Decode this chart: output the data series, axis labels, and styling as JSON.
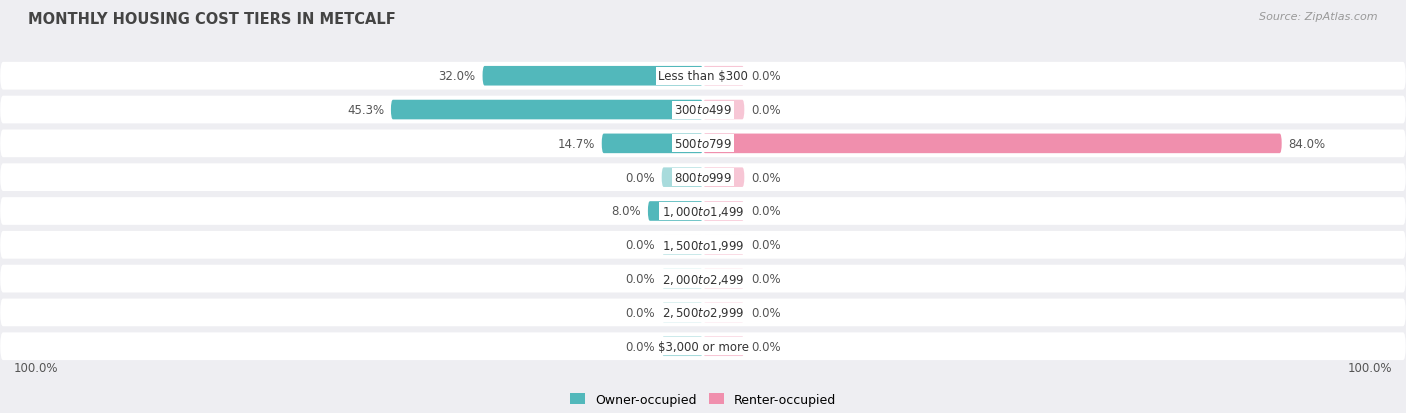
{
  "title": "MONTHLY HOUSING COST TIERS IN METCALF",
  "source": "Source: ZipAtlas.com",
  "categories": [
    "Less than $300",
    "$300 to $499",
    "$500 to $799",
    "$800 to $999",
    "$1,000 to $1,499",
    "$1,500 to $1,999",
    "$2,000 to $2,499",
    "$2,500 to $2,999",
    "$3,000 or more"
  ],
  "owner_values": [
    32.0,
    45.3,
    14.7,
    0.0,
    8.0,
    0.0,
    0.0,
    0.0,
    0.0
  ],
  "renter_values": [
    0.0,
    0.0,
    84.0,
    0.0,
    0.0,
    0.0,
    0.0,
    0.0,
    0.0
  ],
  "owner_color": "#52b8bb",
  "renter_color": "#f08fad",
  "bg_color": "#eeeef2",
  "row_bg_color": "#ffffff",
  "label_color": "#555555",
  "axis_max": 100.0,
  "stub_size": 6.0,
  "bar_height": 0.58,
  "figsize": [
    14.06,
    4.14
  ],
  "dpi": 100,
  "title_fontsize": 10.5,
  "label_fontsize": 8.5,
  "category_fontsize": 8.5,
  "legend_fontsize": 9,
  "source_fontsize": 8
}
